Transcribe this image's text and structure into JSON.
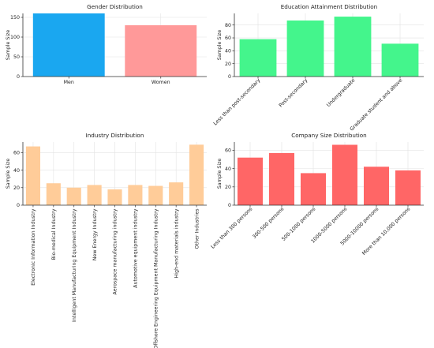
{
  "chart_data": [
    {
      "type": "bar",
      "title": "Gender Distribution",
      "ylabel": "Sample Size",
      "xlabel": "",
      "categories": [
        "Men",
        "Women"
      ],
      "values": [
        160,
        130
      ],
      "ylim": [
        0,
        160
      ],
      "yticks": [
        0,
        50,
        100,
        150
      ],
      "color": "#1aa7f0",
      "colors": [
        "#1aa7f0",
        "#ff9999"
      ],
      "tick_rotation": 0,
      "grid": true
    },
    {
      "type": "bar",
      "title": "Education Attainment Distribution",
      "ylabel": "Sample Size",
      "xlabel": "",
      "categories": [
        "Less than post-secondary",
        "Post-secondary",
        "Undergraduate",
        "Graduate student and above"
      ],
      "values": [
        58,
        87,
        93,
        51
      ],
      "ylim": [
        0,
        98
      ],
      "yticks": [
        0,
        20,
        40,
        60,
        80
      ],
      "color": "#44f58c",
      "tick_rotation": -45,
      "grid": true
    },
    {
      "type": "bar",
      "title": "Industry Distribution",
      "ylabel": "Sample Size",
      "xlabel": "",
      "categories": [
        "Electronic Information Industry",
        "Bio-medical Industry",
        "Intelligent Manufacturing Equipment Industry",
        "New Energy Industry",
        "Aerospace manufacturing industry",
        "Automotive equipment industry",
        "Offshore Engineering Equipment Manufacturing Industry",
        "High-end materials industry",
        "Other Industries"
      ],
      "values": [
        67,
        25,
        20,
        23,
        18,
        23,
        22,
        26,
        69
      ],
      "ylim": [
        0,
        72
      ],
      "yticks": [
        0,
        20,
        40,
        60
      ],
      "color": "#ffcc99",
      "tick_rotation": -90,
      "grid": true
    },
    {
      "type": "bar",
      "title": "Company Size Distribution",
      "ylabel": "Sample Size",
      "xlabel": "",
      "categories": [
        "Less than 300 persons",
        "300-500 persons",
        "500-1000 persons",
        "1000-5000 persons",
        "5000-10000 persons",
        "More than 10,000 persons"
      ],
      "values": [
        52,
        57,
        35,
        66,
        42,
        38
      ],
      "ylim": [
        0,
        69
      ],
      "yticks": [
        0,
        20,
        40,
        60
      ],
      "color": "#ff6666",
      "tick_rotation": -45,
      "grid": true
    }
  ]
}
